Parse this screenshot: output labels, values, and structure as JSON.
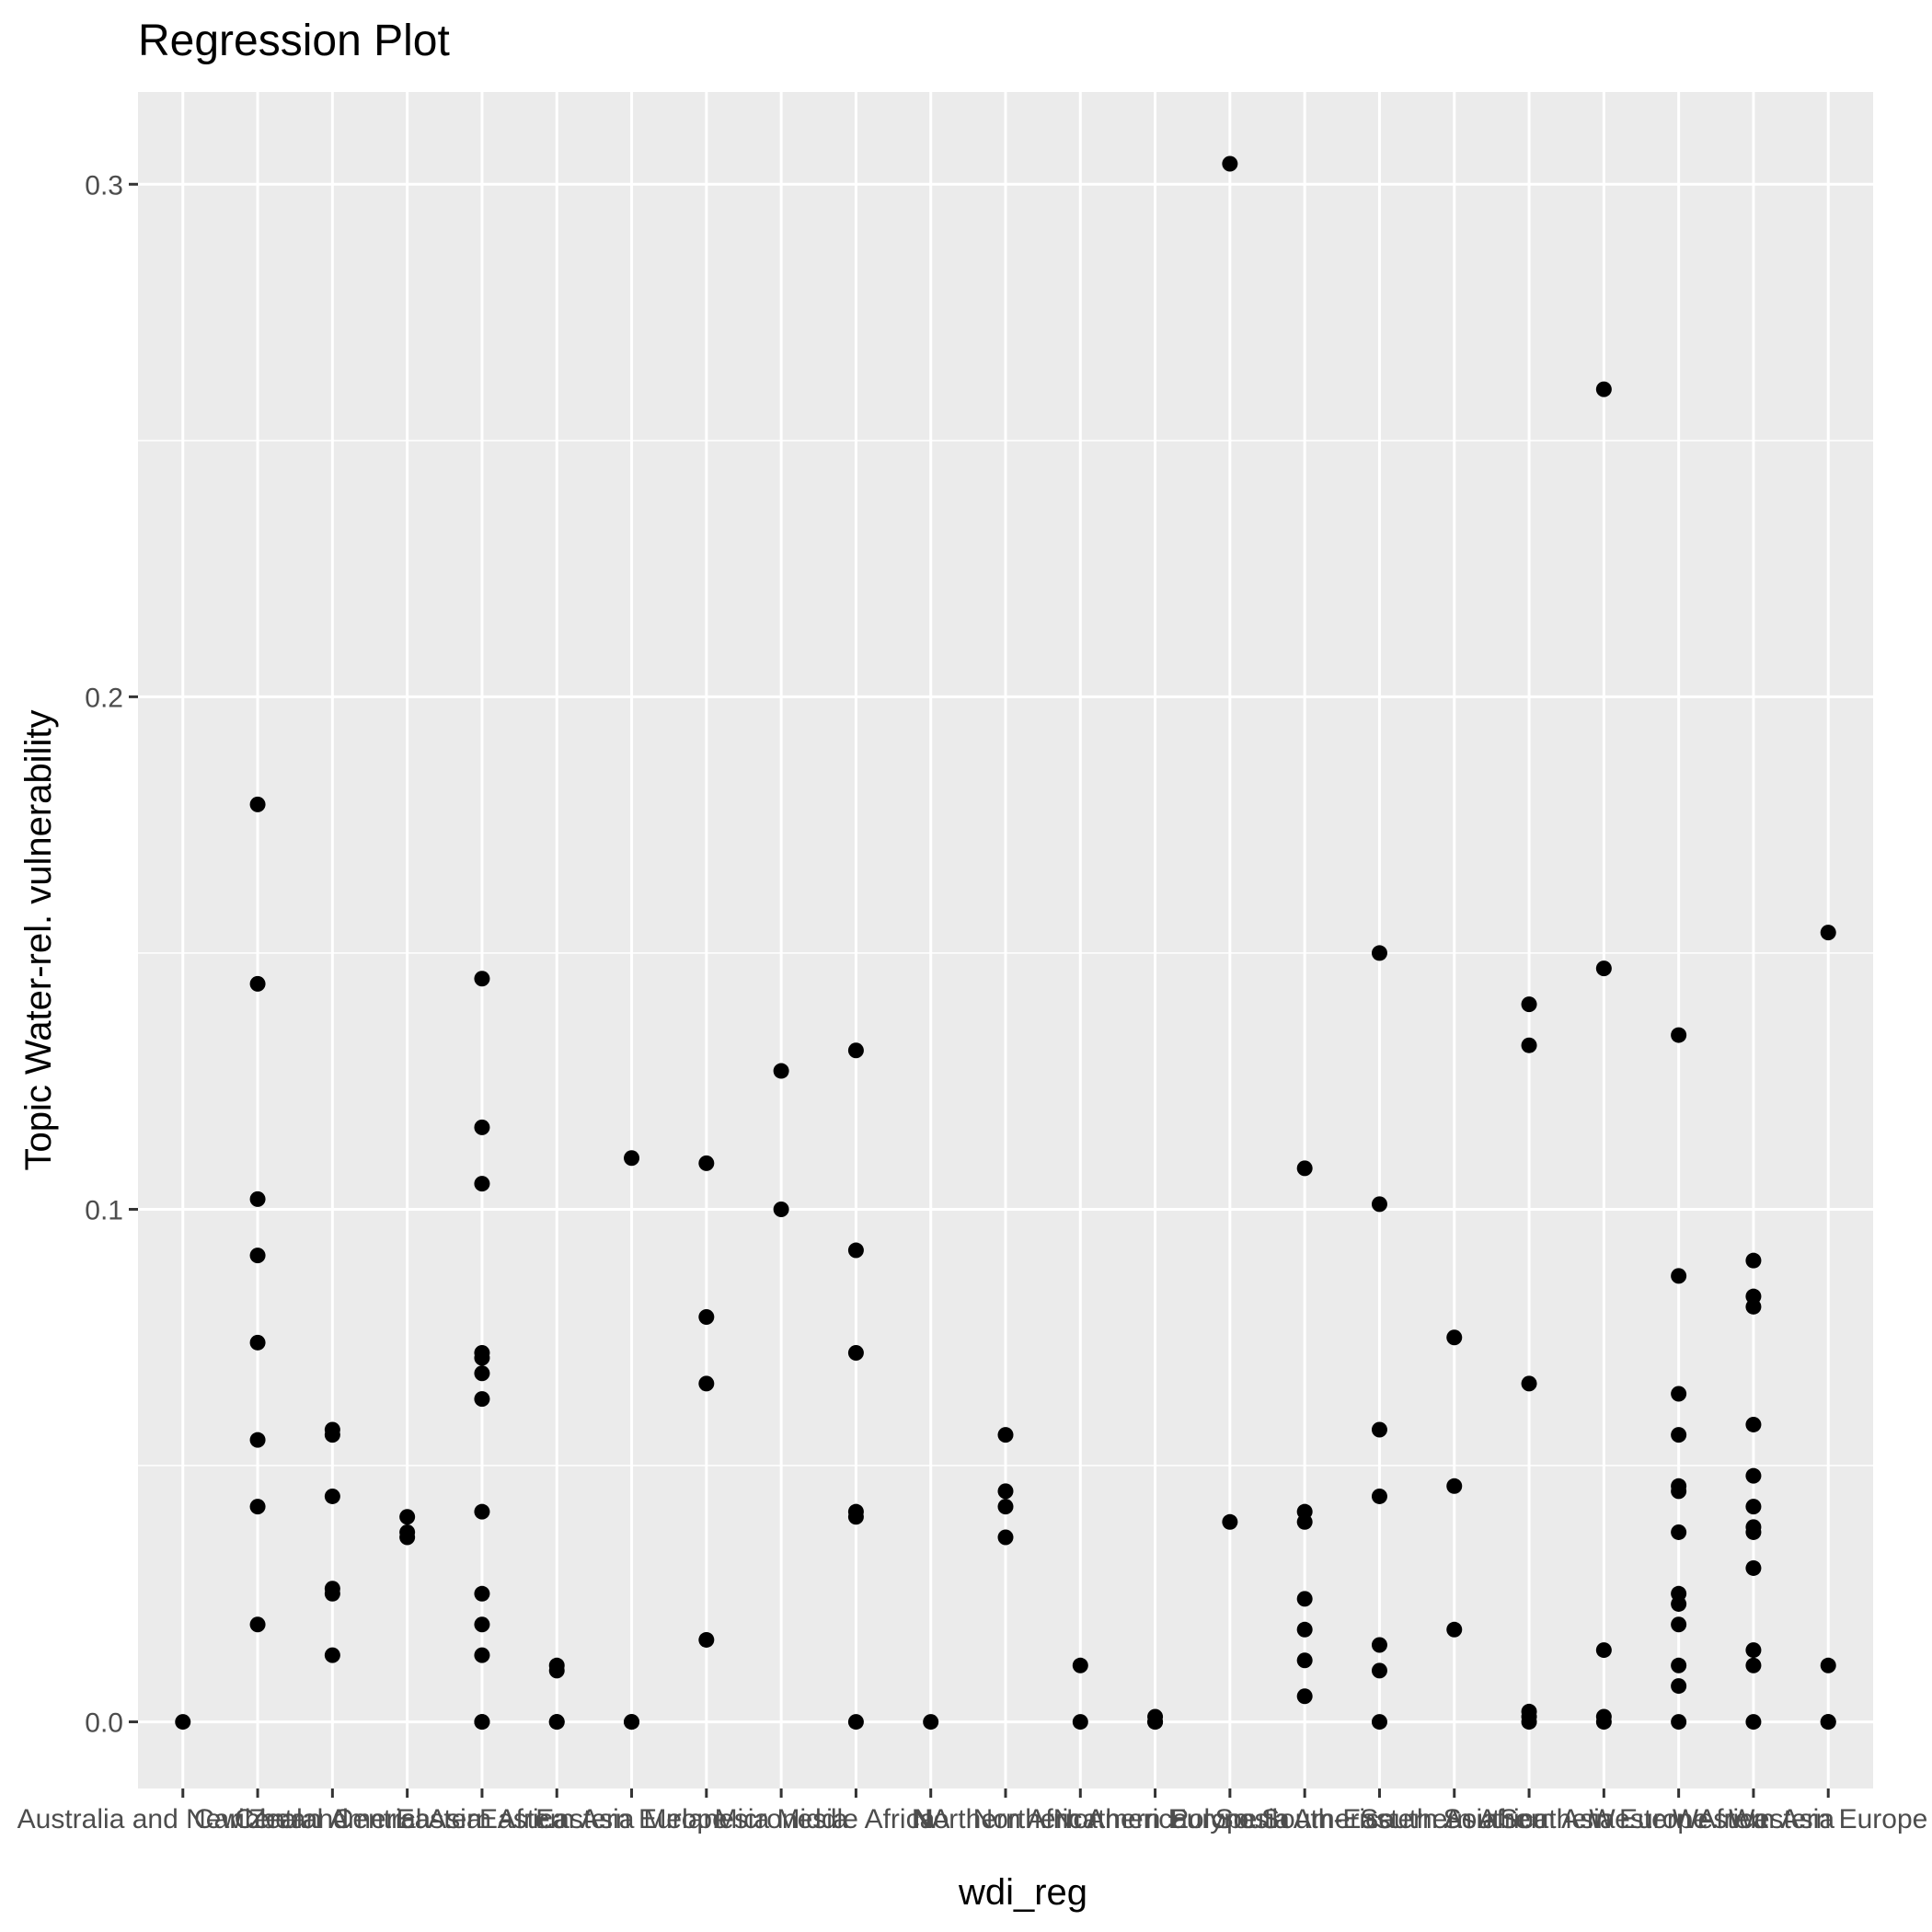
{
  "chart_data": {
    "type": "scatter",
    "title": "Regression Plot",
    "xlabel": "wdi_reg",
    "ylabel": "Topic Water-rel. vulnerability",
    "ylim": [
      -0.013,
      0.318
    ],
    "y_ticks": [
      0.0,
      0.1,
      0.2,
      0.3
    ],
    "y_tick_labels": [
      "0.0",
      "0.1",
      "0.2",
      "0.3"
    ],
    "grid": true,
    "categories": [
      "Australia and New Zealand",
      "Caribbean",
      "Central America",
      "Central Asia",
      "Eastern Africa",
      "Eastern Asia",
      "Eastern Europe",
      "Melanesia",
      "Micronesia",
      "Middle Africa",
      "NA",
      "Northern Africa",
      "Northern America",
      "Northern Europe",
      "Polynesia",
      "South America",
      "South-Eastern Asia",
      "Southern Africa",
      "Southern Asia",
      "Southern Europe",
      "Western Africa",
      "Western Asia",
      "Western Europe"
    ],
    "points": [
      {
        "x": "Australia and New Zealand",
        "y": [
          0.0
        ]
      },
      {
        "x": "Caribbean",
        "y": [
          0.179,
          0.144,
          0.102,
          0.091,
          0.074,
          0.055,
          0.042,
          0.019
        ]
      },
      {
        "x": "Central America",
        "y": [
          0.057,
          0.056,
          0.044,
          0.026,
          0.025,
          0.013
        ]
      },
      {
        "x": "Central Asia",
        "y": [
          0.04,
          0.037,
          0.036
        ]
      },
      {
        "x": "Eastern Africa",
        "y": [
          0.145,
          0.116,
          0.105,
          0.072,
          0.071,
          0.068,
          0.063,
          0.041,
          0.025,
          0.019,
          0.013,
          0.0,
          0.0
        ]
      },
      {
        "x": "Eastern Asia",
        "y": [
          0.011,
          0.01,
          0.0,
          0.0
        ]
      },
      {
        "x": "Eastern Europe",
        "y": [
          0.11,
          0.0,
          0.0
        ]
      },
      {
        "x": "Melanesia",
        "y": [
          0.109,
          0.079,
          0.066,
          0.016
        ]
      },
      {
        "x": "Micronesia",
        "y": [
          0.127,
          0.1
        ]
      },
      {
        "x": "Middle Africa",
        "y": [
          0.131,
          0.092,
          0.072,
          0.041,
          0.04,
          0.0
        ]
      },
      {
        "x": "NA",
        "y": [
          0.0
        ]
      },
      {
        "x": "Northern Africa",
        "y": [
          0.056,
          0.045,
          0.042,
          0.036
        ]
      },
      {
        "x": "Northern America",
        "y": [
          0.011,
          0.0
        ]
      },
      {
        "x": "Northern Europe",
        "y": [
          0.001,
          0.0,
          0.0
        ]
      },
      {
        "x": "Polynesia",
        "y": [
          0.304,
          0.039
        ]
      },
      {
        "x": "South America",
        "y": [
          0.108,
          0.041,
          0.039,
          0.024,
          0.018,
          0.012,
          0.005
        ]
      },
      {
        "x": "South-Eastern Asia",
        "y": [
          0.15,
          0.101,
          0.057,
          0.044,
          0.015,
          0.01,
          0.0
        ]
      },
      {
        "x": "Southern Africa",
        "y": [
          0.075,
          0.046,
          0.018
        ]
      },
      {
        "x": "Southern Asia",
        "y": [
          0.14,
          0.132,
          0.066,
          0.002,
          0.001,
          0.0
        ]
      },
      {
        "x": "Southern Europe",
        "y": [
          0.26,
          0.147,
          0.014,
          0.001,
          0.0
        ]
      },
      {
        "x": "Western Africa",
        "y": [
          0.134,
          0.087,
          0.064,
          0.056,
          0.046,
          0.045,
          0.037,
          0.025,
          0.023,
          0.019,
          0.011,
          0.007,
          0.0
        ]
      },
      {
        "x": "Western Asia",
        "y": [
          0.09,
          0.083,
          0.081,
          0.058,
          0.048,
          0.042,
          0.038,
          0.037,
          0.03,
          0.014,
          0.011,
          0.0
        ]
      },
      {
        "x": "Western Europe",
        "y": [
          0.154,
          0.011,
          0.0,
          0.0
        ]
      }
    ],
    "colors": {
      "panel": "#ebebeb",
      "grid_major": "#ffffff",
      "point": "#000000",
      "tick": "#333333",
      "tick_label": "#4d4d4d"
    }
  }
}
